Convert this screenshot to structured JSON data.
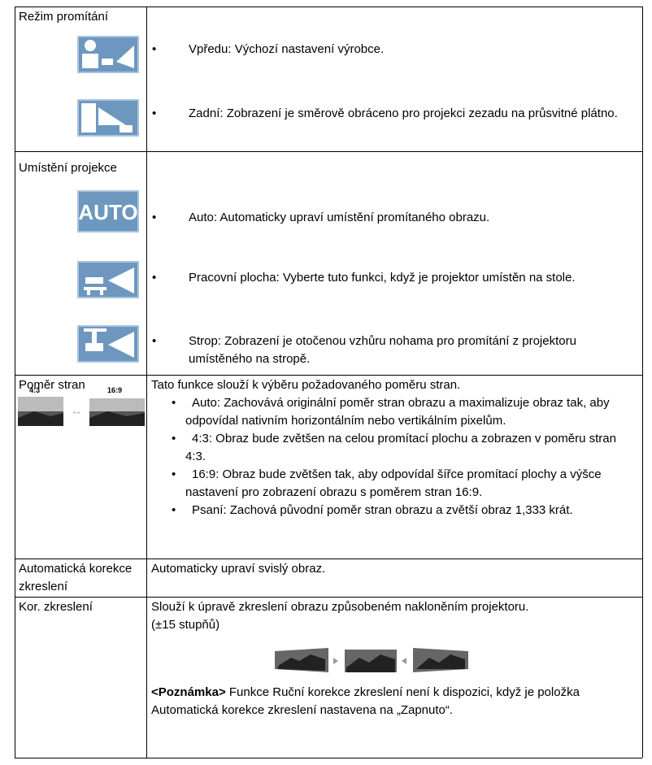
{
  "rows": [
    {
      "label": "Režim promítání",
      "items": [
        "Vpředu: Výchozí nastavení výrobce.",
        "Zadní: Zobrazení je směrově obráceno pro projekci zezadu na průsvitné plátno."
      ]
    },
    {
      "label": "Umístění projekce",
      "icon_text": "AUTO",
      "items": [
        "Auto: Automaticky upraví umístění promítaného obrazu.",
        "Pracovní plocha: Vyberte tuto funkci, když je projektor umístěn na stole.",
        "Strop: Zobrazení je otočenou vzhůru nohama pro promítání z projektoru umístěného na stropě."
      ]
    },
    {
      "label": "Poměr stran",
      "image_labels": [
        "4:3",
        "16:9"
      ],
      "intro": "Tato funkce slouží k výběru požadovaného poměru stran.",
      "items": [
        "Auto: Zachovává originální poměr stran obrazu a maximalizuje obraz tak, aby odpovídal nativním horizontálním nebo vertikálním pixelům.",
        "4:3: Obraz bude zvětšen na celou promítací plochu a zobrazen v poměru stran 4:3.",
        "16:9: Obraz bude zvětšen tak, aby odpovídal šířce promítací plochy a výšce nastavení pro zobrazení obrazu s poměrem stran 16:9.",
        "Psaní: Zachová původní poměr stran obrazu a zvětší obraz 1,333 krát."
      ]
    },
    {
      "label": "Automatická korekce zkreslení",
      "text": "Automaticky upraví svislý obraz."
    },
    {
      "label": "Kor. zkreslení",
      "lines": [
        "Slouží k úpravě zkreslení obrazu způsobeném nakloněním projektoru.",
        "(±15 stupňů)"
      ],
      "note_label": "<Poznámka>",
      "note": "Funkce Ruční korekce zkreslení není k dispozici, když je položka Automatická korekce zkreslení nastavena na „Zapnuto“."
    }
  ]
}
